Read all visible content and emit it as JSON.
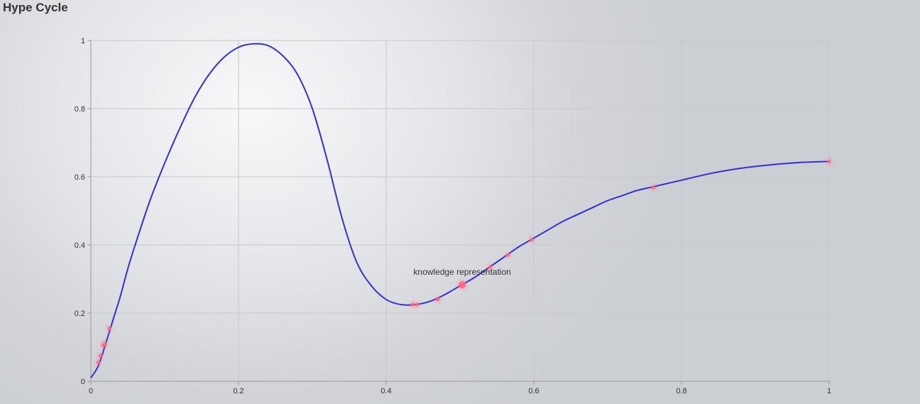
{
  "page": {
    "title": "Hype Cycle"
  },
  "colors": {
    "curve": "#3333cc",
    "point": "#ff6680",
    "grid": "#c8c8cc",
    "axis": "#999999",
    "text": "#333333"
  },
  "chart_data": {
    "type": "line",
    "title": "",
    "xlabel": "",
    "ylabel": "",
    "xlim": [
      0,
      1
    ],
    "ylim": [
      0,
      1
    ],
    "x_ticks": [
      "0",
      "0.2",
      "0.4",
      "0.6",
      "0.8",
      "1"
    ],
    "y_ticks": [
      "0",
      "0.2",
      "0.4",
      "0.6",
      "0.8",
      "1"
    ],
    "grid": true,
    "series": [
      {
        "values": [
          [
            0.0,
            0.01
          ],
          [
            0.01,
            0.045
          ],
          [
            0.02,
            0.11
          ],
          [
            0.03,
            0.18
          ],
          [
            0.04,
            0.25
          ],
          [
            0.05,
            0.33
          ],
          [
            0.06,
            0.4
          ],
          [
            0.08,
            0.53
          ],
          [
            0.1,
            0.64
          ],
          [
            0.12,
            0.74
          ],
          [
            0.14,
            0.83
          ],
          [
            0.16,
            0.9
          ],
          [
            0.18,
            0.95
          ],
          [
            0.2,
            0.98
          ],
          [
            0.22,
            0.99
          ],
          [
            0.24,
            0.985
          ],
          [
            0.26,
            0.955
          ],
          [
            0.28,
            0.9
          ],
          [
            0.3,
            0.8
          ],
          [
            0.32,
            0.65
          ],
          [
            0.34,
            0.48
          ],
          [
            0.36,
            0.35
          ],
          [
            0.38,
            0.28
          ],
          [
            0.4,
            0.24
          ],
          [
            0.42,
            0.225
          ],
          [
            0.44,
            0.225
          ],
          [
            0.46,
            0.235
          ],
          [
            0.48,
            0.255
          ],
          [
            0.5,
            0.28
          ],
          [
            0.52,
            0.305
          ],
          [
            0.54,
            0.335
          ],
          [
            0.56,
            0.365
          ],
          [
            0.58,
            0.395
          ],
          [
            0.6,
            0.42
          ],
          [
            0.62,
            0.445
          ],
          [
            0.64,
            0.47
          ],
          [
            0.66,
            0.49
          ],
          [
            0.68,
            0.51
          ],
          [
            0.7,
            0.53
          ],
          [
            0.72,
            0.545
          ],
          [
            0.74,
            0.56
          ],
          [
            0.76,
            0.57
          ],
          [
            0.8,
            0.59
          ],
          [
            0.84,
            0.61
          ],
          [
            0.88,
            0.625
          ],
          [
            0.92,
            0.635
          ],
          [
            0.96,
            0.642
          ],
          [
            1.0,
            0.645
          ]
        ]
      }
    ],
    "points": [
      {
        "x": 0.01,
        "y": 0.055,
        "highlight": false
      },
      {
        "x": 0.013,
        "y": 0.075,
        "highlight": false
      },
      {
        "x": 0.017,
        "y": 0.105,
        "highlight": false
      },
      {
        "x": 0.019,
        "y": 0.11,
        "highlight": false
      },
      {
        "x": 0.025,
        "y": 0.155,
        "highlight": false
      },
      {
        "x": 0.436,
        "y": 0.225,
        "highlight": false
      },
      {
        "x": 0.442,
        "y": 0.225,
        "highlight": false
      },
      {
        "x": 0.47,
        "y": 0.24,
        "highlight": false
      },
      {
        "x": 0.503,
        "y": 0.283,
        "highlight": true,
        "label": "knowledge representation"
      },
      {
        "x": 0.541,
        "y": 0.335,
        "highlight": false
      },
      {
        "x": 0.565,
        "y": 0.37,
        "highlight": false
      },
      {
        "x": 0.597,
        "y": 0.415,
        "highlight": false
      },
      {
        "x": 0.762,
        "y": 0.568,
        "highlight": false
      },
      {
        "x": 1.0,
        "y": 0.645,
        "highlight": false
      }
    ]
  }
}
